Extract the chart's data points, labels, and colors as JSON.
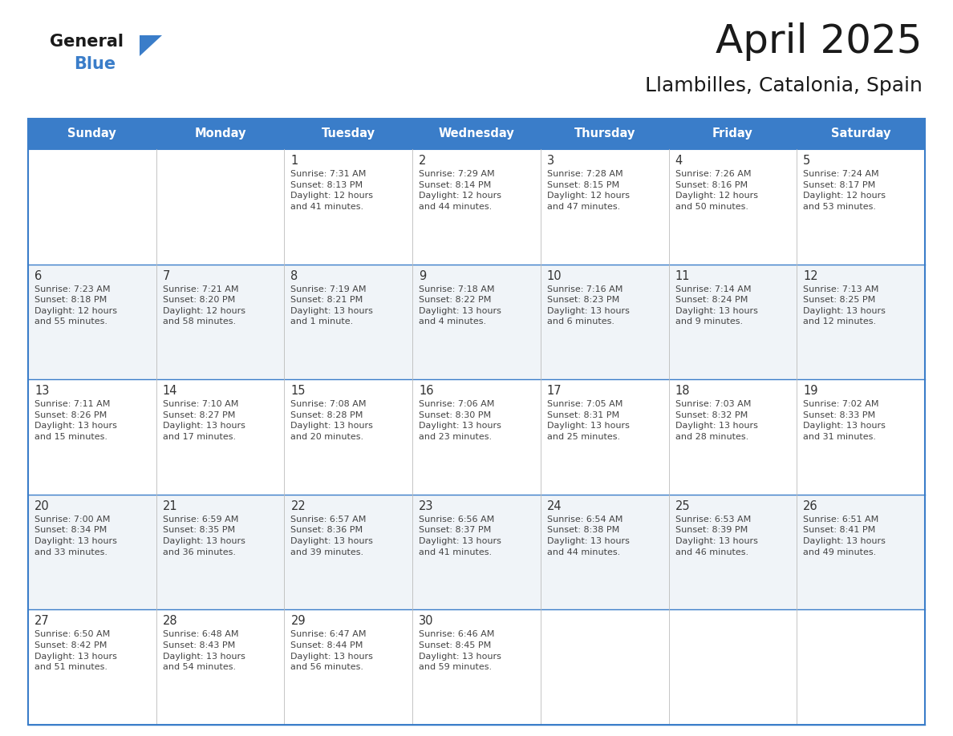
{
  "title": "April 2025",
  "subtitle": "Llambilles, Catalonia, Spain",
  "header_color": "#3A7DC9",
  "header_text_color": "#FFFFFF",
  "cell_bg_even": "#FFFFFF",
  "cell_bg_odd": "#F0F4F8",
  "border_color": "#3A7DC9",
  "inner_line_color": "#3A7DC9",
  "text_color": "#333333",
  "day_headers": [
    "Sunday",
    "Monday",
    "Tuesday",
    "Wednesday",
    "Thursday",
    "Friday",
    "Saturday"
  ],
  "weeks": [
    [
      {
        "day": "",
        "text": ""
      },
      {
        "day": "",
        "text": ""
      },
      {
        "day": "1",
        "text": "Sunrise: 7:31 AM\nSunset: 8:13 PM\nDaylight: 12 hours\nand 41 minutes."
      },
      {
        "day": "2",
        "text": "Sunrise: 7:29 AM\nSunset: 8:14 PM\nDaylight: 12 hours\nand 44 minutes."
      },
      {
        "day": "3",
        "text": "Sunrise: 7:28 AM\nSunset: 8:15 PM\nDaylight: 12 hours\nand 47 minutes."
      },
      {
        "day": "4",
        "text": "Sunrise: 7:26 AM\nSunset: 8:16 PM\nDaylight: 12 hours\nand 50 minutes."
      },
      {
        "day": "5",
        "text": "Sunrise: 7:24 AM\nSunset: 8:17 PM\nDaylight: 12 hours\nand 53 minutes."
      }
    ],
    [
      {
        "day": "6",
        "text": "Sunrise: 7:23 AM\nSunset: 8:18 PM\nDaylight: 12 hours\nand 55 minutes."
      },
      {
        "day": "7",
        "text": "Sunrise: 7:21 AM\nSunset: 8:20 PM\nDaylight: 12 hours\nand 58 minutes."
      },
      {
        "day": "8",
        "text": "Sunrise: 7:19 AM\nSunset: 8:21 PM\nDaylight: 13 hours\nand 1 minute."
      },
      {
        "day": "9",
        "text": "Sunrise: 7:18 AM\nSunset: 8:22 PM\nDaylight: 13 hours\nand 4 minutes."
      },
      {
        "day": "10",
        "text": "Sunrise: 7:16 AM\nSunset: 8:23 PM\nDaylight: 13 hours\nand 6 minutes."
      },
      {
        "day": "11",
        "text": "Sunrise: 7:14 AM\nSunset: 8:24 PM\nDaylight: 13 hours\nand 9 minutes."
      },
      {
        "day": "12",
        "text": "Sunrise: 7:13 AM\nSunset: 8:25 PM\nDaylight: 13 hours\nand 12 minutes."
      }
    ],
    [
      {
        "day": "13",
        "text": "Sunrise: 7:11 AM\nSunset: 8:26 PM\nDaylight: 13 hours\nand 15 minutes."
      },
      {
        "day": "14",
        "text": "Sunrise: 7:10 AM\nSunset: 8:27 PM\nDaylight: 13 hours\nand 17 minutes."
      },
      {
        "day": "15",
        "text": "Sunrise: 7:08 AM\nSunset: 8:28 PM\nDaylight: 13 hours\nand 20 minutes."
      },
      {
        "day": "16",
        "text": "Sunrise: 7:06 AM\nSunset: 8:30 PM\nDaylight: 13 hours\nand 23 minutes."
      },
      {
        "day": "17",
        "text": "Sunrise: 7:05 AM\nSunset: 8:31 PM\nDaylight: 13 hours\nand 25 minutes."
      },
      {
        "day": "18",
        "text": "Sunrise: 7:03 AM\nSunset: 8:32 PM\nDaylight: 13 hours\nand 28 minutes."
      },
      {
        "day": "19",
        "text": "Sunrise: 7:02 AM\nSunset: 8:33 PM\nDaylight: 13 hours\nand 31 minutes."
      }
    ],
    [
      {
        "day": "20",
        "text": "Sunrise: 7:00 AM\nSunset: 8:34 PM\nDaylight: 13 hours\nand 33 minutes."
      },
      {
        "day": "21",
        "text": "Sunrise: 6:59 AM\nSunset: 8:35 PM\nDaylight: 13 hours\nand 36 minutes."
      },
      {
        "day": "22",
        "text": "Sunrise: 6:57 AM\nSunset: 8:36 PM\nDaylight: 13 hours\nand 39 minutes."
      },
      {
        "day": "23",
        "text": "Sunrise: 6:56 AM\nSunset: 8:37 PM\nDaylight: 13 hours\nand 41 minutes."
      },
      {
        "day": "24",
        "text": "Sunrise: 6:54 AM\nSunset: 8:38 PM\nDaylight: 13 hours\nand 44 minutes."
      },
      {
        "day": "25",
        "text": "Sunrise: 6:53 AM\nSunset: 8:39 PM\nDaylight: 13 hours\nand 46 minutes."
      },
      {
        "day": "26",
        "text": "Sunrise: 6:51 AM\nSunset: 8:41 PM\nDaylight: 13 hours\nand 49 minutes."
      }
    ],
    [
      {
        "day": "27",
        "text": "Sunrise: 6:50 AM\nSunset: 8:42 PM\nDaylight: 13 hours\nand 51 minutes."
      },
      {
        "day": "28",
        "text": "Sunrise: 6:48 AM\nSunset: 8:43 PM\nDaylight: 13 hours\nand 54 minutes."
      },
      {
        "day": "29",
        "text": "Sunrise: 6:47 AM\nSunset: 8:44 PM\nDaylight: 13 hours\nand 56 minutes."
      },
      {
        "day": "30",
        "text": "Sunrise: 6:46 AM\nSunset: 8:45 PM\nDaylight: 13 hours\nand 59 minutes."
      },
      {
        "day": "",
        "text": ""
      },
      {
        "day": "",
        "text": ""
      },
      {
        "day": "",
        "text": ""
      }
    ]
  ]
}
